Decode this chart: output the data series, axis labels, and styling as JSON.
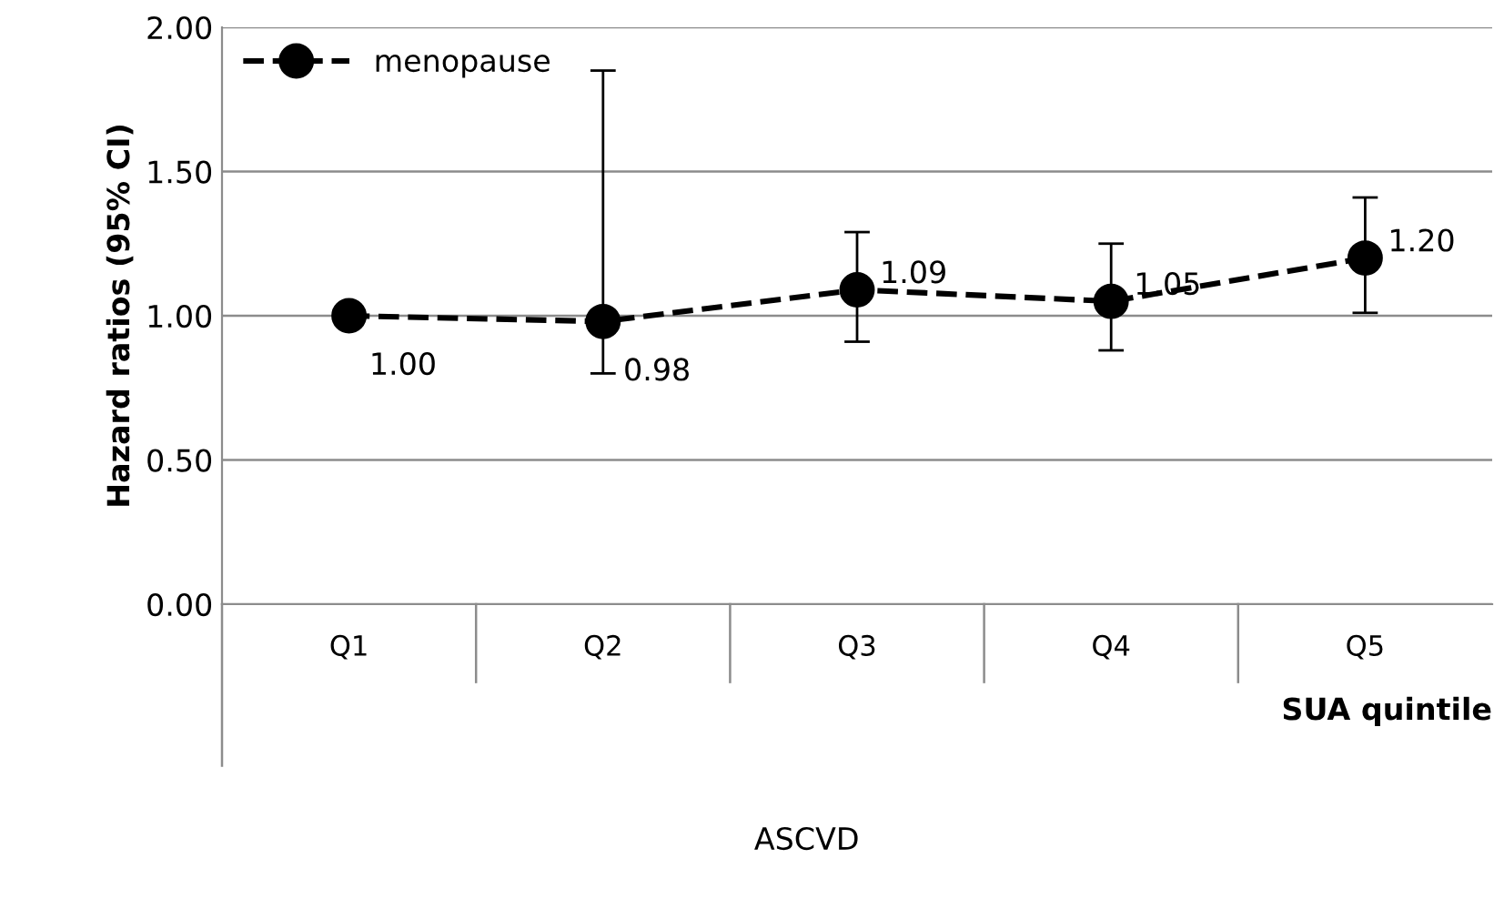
{
  "chart_data": {
    "type": "line",
    "ylabel": "Hazard ratios (95% CI)",
    "xlabel": "SUA quintile",
    "annotations": [
      "ASCVD"
    ],
    "categories": [
      "Q1",
      "Q2",
      "Q3",
      "Q4",
      "Q5"
    ],
    "series": [
      {
        "name": "menopause",
        "color": "#000000",
        "values": [
          1.0,
          0.98,
          1.09,
          1.05,
          1.2
        ],
        "value_labels": [
          "1.00",
          "0.98",
          "1.09",
          "1.05",
          "1.20"
        ],
        "errors": [
          null,
          [
            0.8,
            1.85
          ],
          [
            0.91,
            1.29
          ],
          [
            0.88,
            1.25
          ],
          [
            1.01,
            1.41
          ]
        ]
      }
    ],
    "ylim": [
      0,
      2
    ],
    "yticks": [
      {
        "value": 0,
        "label": "0.00"
      },
      {
        "value": 0.5,
        "label": "0.50"
      },
      {
        "value": 1,
        "label": "1.00"
      },
      {
        "value": 1.5,
        "label": "1.50"
      },
      {
        "value": 2,
        "label": "2.00"
      }
    ],
    "grid": "y",
    "legend": "top left",
    "marker": "circle",
    "line_style": "dashed"
  }
}
